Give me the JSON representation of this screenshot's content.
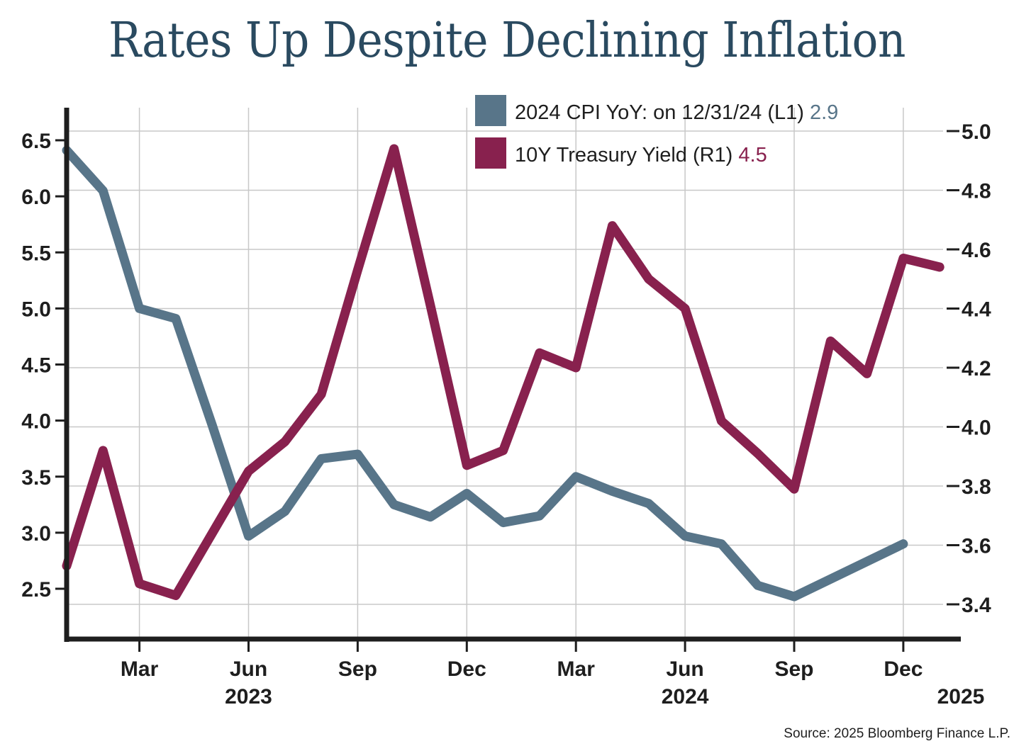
{
  "chart_data": {
    "type": "line",
    "title": "Rates Up Despite Declining Inflation",
    "xlabel": "",
    "ylabel_left": "",
    "ylabel_right": "",
    "x": [
      "2023-01",
      "2023-02",
      "2023-03",
      "2023-04",
      "2023-05",
      "2023-06",
      "2023-07",
      "2023-08",
      "2023-09",
      "2023-10",
      "2023-11",
      "2023-12",
      "2024-01",
      "2024-02",
      "2024-03",
      "2024-04",
      "2024-05",
      "2024-06",
      "2024-07",
      "2024-08",
      "2024-09",
      "2024-10",
      "2024-11",
      "2024-12",
      "2025-01"
    ],
    "x_ticks": [
      {
        "month": "2023-03",
        "label": "Mar",
        "year": ""
      },
      {
        "month": "2023-06",
        "label": "Jun",
        "year": "2023"
      },
      {
        "month": "2023-09",
        "label": "Sep",
        "year": ""
      },
      {
        "month": "2023-12",
        "label": "Dec",
        "year": ""
      },
      {
        "month": "2024-03",
        "label": "Mar",
        "year": ""
      },
      {
        "month": "2024-06",
        "label": "Jun",
        "year": "2024"
      },
      {
        "month": "2024-09",
        "label": "Sep",
        "year": ""
      },
      {
        "month": "2024-12",
        "label": "Dec",
        "year": ""
      }
    ],
    "x_end_year_label": "2025",
    "left_axis": {
      "ticks": [
        "6.5",
        "6.0",
        "5.5",
        "5.0",
        "4.5",
        "4.0",
        "3.5",
        "3.0",
        "2.5"
      ],
      "range": [
        2.1,
        6.9
      ]
    },
    "right_axis": {
      "ticks": [
        "5.0",
        "4.8",
        "4.6",
        "4.4",
        "4.2",
        "4.0",
        "3.8",
        "3.6",
        "3.4"
      ],
      "range": [
        3.29,
        5.09
      ]
    },
    "grid": true,
    "legend_position": "top-right",
    "series": [
      {
        "name": "2024 CPI YoY: on 12/31/24 (L1)",
        "last_value": "2.9",
        "axis": "left",
        "color": "#587589",
        "values": [
          6.41,
          6.05,
          5.0,
          4.91,
          3.96,
          2.97,
          3.19,
          3.66,
          3.7,
          3.25,
          3.14,
          3.35,
          3.09,
          3.15,
          3.5,
          3.37,
          3.26,
          2.97,
          2.9,
          2.53,
          2.43,
          null,
          null,
          2.9,
          null
        ]
      },
      {
        "name": "10Y Treasury Yield (R1)",
        "last_value": "4.5",
        "axis": "right",
        "color": "#88214e",
        "values": [
          3.53,
          3.92,
          3.47,
          3.43,
          3.64,
          3.85,
          3.95,
          4.11,
          4.53,
          4.94,
          4.41,
          3.87,
          3.92,
          4.25,
          4.2,
          4.68,
          4.5,
          4.4,
          4.02,
          3.91,
          3.79,
          4.29,
          4.18,
          4.57,
          4.54
        ]
      }
    ],
    "source": "Source: 2025 Bloomberg Finance L.P."
  }
}
